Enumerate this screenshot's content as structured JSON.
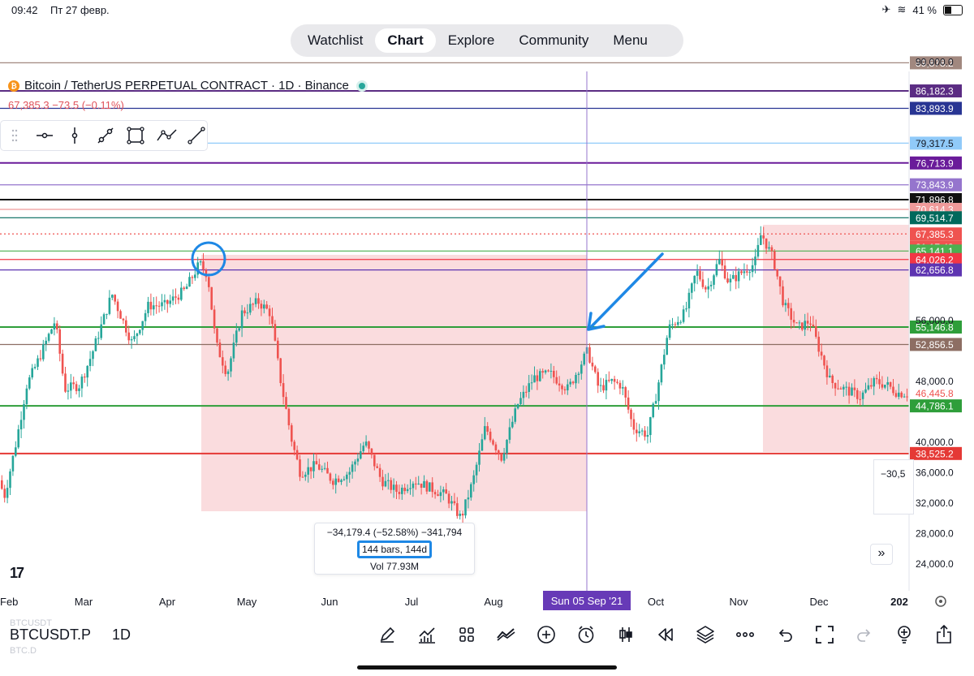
{
  "status_bar": {
    "time": "09:42",
    "date": "Пт 27 февр.",
    "battery": "41 %"
  },
  "nav": {
    "tabs": [
      {
        "label": "Watchlist",
        "active": false
      },
      {
        "label": "Chart",
        "active": true
      },
      {
        "label": "Explore",
        "active": false
      },
      {
        "label": "Community",
        "active": false
      },
      {
        "label": "Menu",
        "active": false
      }
    ]
  },
  "symbol": {
    "coin_icon": "bitcoin-icon",
    "coin_glyph": "₿",
    "title": "Bitcoin / TetherUS PERPETUAL CONTRACT · 1D · Binance",
    "status_color": "#26a69a"
  },
  "price_info": {
    "text": "67,385.3  −73.5 (−0.11%)"
  },
  "drawing_tools": [
    "horizontal-line-icon",
    "vertical-line-icon",
    "trend-angle-icon",
    "rectangle-icon",
    "path-icon",
    "trend-line-icon"
  ],
  "price_axis": {
    "ticks": [
      "90,000.0",
      "56,000.0",
      "48,000.0",
      "40,000.0",
      "36,000.0",
      "32,000.0",
      "28,000.0",
      "24,000.0"
    ],
    "level_labels": [
      {
        "value": "89,878.2",
        "bg": "#a1887f",
        "fg": "#ffffff"
      },
      {
        "value": "86,182.3",
        "bg": "#5b2c83",
        "fg": "#ffffff"
      },
      {
        "value": "83,893.9",
        "bg": "#283593",
        "fg": "#ffffff"
      },
      {
        "value": "79,317.5",
        "bg": "#90caf9",
        "fg": "#131722"
      },
      {
        "value": "76,713.9",
        "bg": "#6a1b9a",
        "fg": "#ffffff"
      },
      {
        "value": "73,843.9",
        "bg": "#9575cd",
        "fg": "#ffffff"
      },
      {
        "value": "71,896.8",
        "bg": "#111111",
        "fg": "#ffffff"
      },
      {
        "value": "70,614.3",
        "bg": "#ef9a9a",
        "fg": "#ffffff"
      },
      {
        "value": "69,514.7",
        "bg": "#00695c",
        "fg": "#ffffff"
      },
      {
        "value": "67,385.3",
        "bg": "#ef5350",
        "fg": "#ffffff"
      },
      {
        "value": "21:17:43",
        "bg": "#ef5350",
        "fg": "#ffffff"
      },
      {
        "value": "65,141.1",
        "bg": "#4caf50",
        "fg": "#ffffff"
      },
      {
        "value": "64,026.2",
        "bg": "#f23645",
        "fg": "#ffffff"
      },
      {
        "value": "62,656.8",
        "bg": "#5e35b1",
        "fg": "#ffffff"
      },
      {
        "value": "55,146.8",
        "bg": "#2e9e3a",
        "fg": "#ffffff"
      },
      {
        "value": "52,856.5",
        "bg": "#8d6e63",
        "fg": "#ffffff"
      },
      {
        "value": "46,445.8",
        "bg": "#ffffff",
        "fg": "#ef5350"
      },
      {
        "value": "44,786.1",
        "bg": "#2e9e3a",
        "fg": "#ffffff"
      },
      {
        "value": "38,525.2",
        "bg": "#e53935",
        "fg": "#ffffff"
      }
    ]
  },
  "time_axis": {
    "labels": [
      "Feb",
      "Mar",
      "Apr",
      "May",
      "Jun",
      "Jul",
      "Aug",
      "Oct",
      "Nov",
      "Dec",
      "202"
    ],
    "crosshair_label": "Sun 05 Sep '21",
    "crosshair_color": "#673ab7"
  },
  "measure": {
    "line1": "−34,179.4 (−52.58%) −341,794",
    "line2": "144 bars, 144d",
    "line3": "Vol 77.93M"
  },
  "right_widget": {
    "text": "−30,5"
  },
  "scroll_button": {
    "glyph": "»"
  },
  "logo": {
    "text": "17"
  },
  "bottom_bar": {
    "ghost_top": "BTCUSDT",
    "ticker": "BTCUSDT.P",
    "ghost_bottom": "BTC.D",
    "interval": "1D",
    "icons": [
      "pencil-icon",
      "indicators-icon",
      "layouts-icon",
      "compare-icon",
      "add-icon",
      "alert-icon",
      "bar-style-icon",
      "replay-icon",
      "layers-icon",
      "more-icon",
      "undo-icon",
      "fullscreen-icon",
      "redo-icon",
      "idea-icon",
      "share-icon"
    ]
  },
  "colors": {
    "up": "#26a69a",
    "down": "#ef5350",
    "annotation": "#1e88e5",
    "range_fill": "#f8c9cc"
  }
}
